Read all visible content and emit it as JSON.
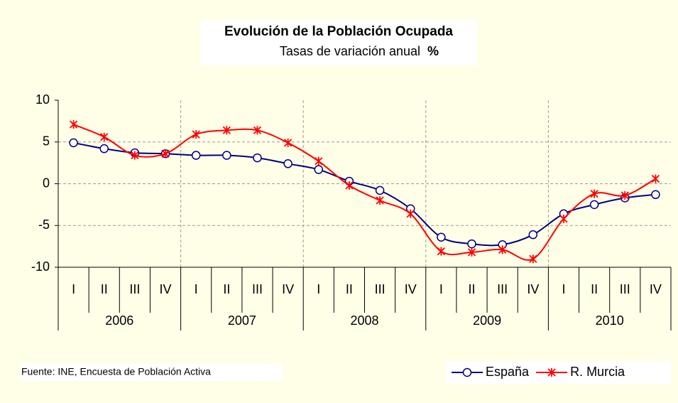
{
  "chart_data": {
    "type": "line",
    "title": "Evolución de la Población Ocupada",
    "subtitle": "Tasas de variación anual",
    "subtitle_unit": "%",
    "categories": [
      "I",
      "II",
      "III",
      "IV",
      "I",
      "II",
      "III",
      "IV",
      "I",
      "II",
      "III",
      "IV",
      "I",
      "II",
      "III",
      "IV",
      "I",
      "II",
      "III",
      "IV"
    ],
    "years": [
      "2006",
      "2007",
      "2008",
      "2009",
      "2010"
    ],
    "series": [
      {
        "name": "España",
        "color": "#000080",
        "marker": "circle",
        "values": [
          4.9,
          4.2,
          3.7,
          3.6,
          3.4,
          3.4,
          3.1,
          2.4,
          1.7,
          0.3,
          -0.8,
          -3.0,
          -6.4,
          -7.2,
          -7.3,
          -6.1,
          -3.6,
          -2.5,
          -1.7,
          -1.3
        ]
      },
      {
        "name": "R. Murcia",
        "color": "#ff0000",
        "marker": "star",
        "values": [
          7.1,
          5.6,
          3.4,
          3.6,
          5.9,
          6.4,
          6.4,
          4.9,
          2.7,
          -0.2,
          -2.0,
          -3.6,
          -8.1,
          -8.2,
          -7.9,
          -9.0,
          -4.2,
          -1.2,
          -1.4,
          0.6
        ]
      }
    ],
    "ylim": [
      -10,
      10
    ],
    "yticks": [
      -10,
      -5,
      0,
      5,
      10
    ],
    "grid": true,
    "source": "Fuente: INE, Encuesta de Población Activa",
    "legend": "bottom-right"
  }
}
